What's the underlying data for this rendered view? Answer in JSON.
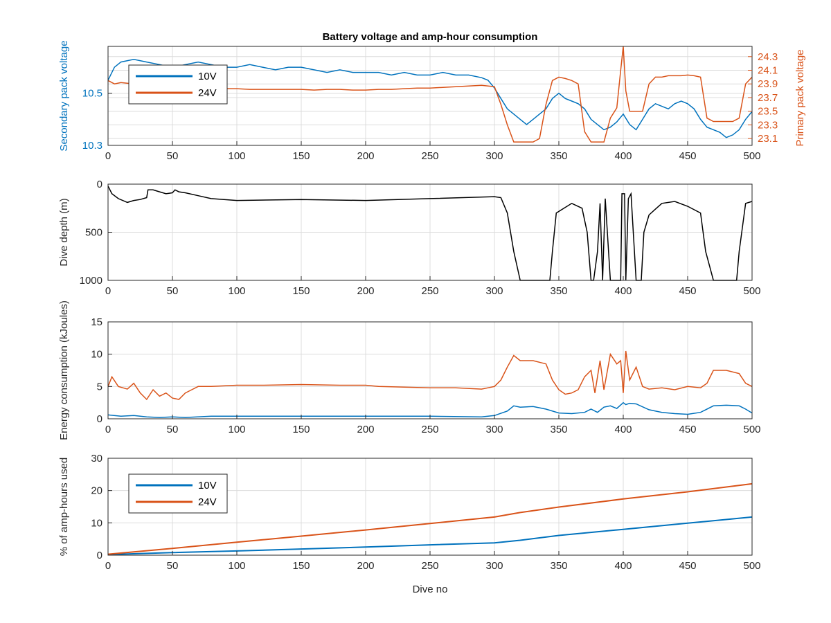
{
  "chart_data": [
    {
      "type": "line",
      "title": "Battery voltage and amp-hour consumption",
      "xlabel": "",
      "ylabel_left": "Secondary pack voltage",
      "ylabel_right": "Primary pack voltage",
      "xlim": [
        0,
        500
      ],
      "ylim_left": [
        10.3,
        10.68
      ],
      "ylim_right": [
        23.0,
        24.45
      ],
      "xticks": [
        "0",
        "50",
        "100",
        "150",
        "200",
        "250",
        "300",
        "350",
        "400",
        "450",
        "500"
      ],
      "yticks_left": [
        "10.3",
        "10.5"
      ],
      "yticks_left_values": [
        10.3,
        10.5
      ],
      "yticks_right": [
        "23.1",
        "23.3",
        "23.5",
        "23.7",
        "23.9",
        "24.1",
        "24.3"
      ],
      "yticks_right_values": [
        23.1,
        23.3,
        23.5,
        23.7,
        23.9,
        24.1,
        24.3
      ],
      "grid": true,
      "legend": {
        "position": "upper-left",
        "entries": [
          "10V",
          "24V"
        ]
      },
      "series": [
        {
          "name": "10V",
          "axis": "left",
          "color": "#0072BD",
          "x": [
            0,
            5,
            10,
            20,
            30,
            40,
            50,
            60,
            70,
            80,
            90,
            100,
            110,
            120,
            130,
            140,
            150,
            160,
            170,
            180,
            190,
            200,
            210,
            220,
            230,
            240,
            250,
            260,
            270,
            280,
            290,
            295,
            300,
            305,
            310,
            315,
            320,
            325,
            330,
            335,
            340,
            345,
            350,
            355,
            360,
            365,
            370,
            375,
            380,
            385,
            390,
            395,
            400,
            405,
            410,
            415,
            420,
            425,
            430,
            435,
            440,
            445,
            450,
            455,
            460,
            465,
            470,
            475,
            480,
            485,
            490,
            495,
            500
          ],
          "y": [
            10.55,
            10.6,
            10.62,
            10.63,
            10.62,
            10.61,
            10.6,
            10.61,
            10.62,
            10.61,
            10.6,
            10.6,
            10.61,
            10.6,
            10.59,
            10.6,
            10.6,
            10.59,
            10.58,
            10.59,
            10.58,
            10.58,
            10.58,
            10.57,
            10.58,
            10.57,
            10.57,
            10.58,
            10.57,
            10.57,
            10.56,
            10.55,
            10.52,
            10.48,
            10.44,
            10.42,
            10.4,
            10.38,
            10.4,
            10.42,
            10.44,
            10.48,
            10.5,
            10.48,
            10.47,
            10.46,
            10.44,
            10.4,
            10.38,
            10.36,
            10.37,
            10.39,
            10.42,
            10.38,
            10.36,
            10.4,
            10.44,
            10.46,
            10.45,
            10.44,
            10.46,
            10.47,
            10.46,
            10.44,
            10.4,
            10.37,
            10.36,
            10.35,
            10.33,
            10.34,
            10.36,
            10.4,
            10.43
          ]
        },
        {
          "name": "24V",
          "axis": "right",
          "color": "#D95319",
          "x": [
            0,
            5,
            10,
            20,
            30,
            40,
            50,
            60,
            70,
            80,
            90,
            100,
            110,
            120,
            130,
            140,
            150,
            160,
            170,
            180,
            190,
            200,
            210,
            220,
            230,
            240,
            250,
            260,
            270,
            280,
            290,
            300,
            305,
            310,
            315,
            320,
            325,
            330,
            335,
            340,
            345,
            350,
            355,
            360,
            365,
            370,
            375,
            380,
            385,
            390,
            395,
            398,
            400,
            402,
            405,
            410,
            415,
            420,
            425,
            430,
            435,
            440,
            445,
            450,
            455,
            460,
            465,
            470,
            475,
            480,
            485,
            490,
            495,
            500
          ],
          "y": [
            23.95,
            23.9,
            23.92,
            23.9,
            23.88,
            23.86,
            23.85,
            23.85,
            23.84,
            23.84,
            23.83,
            23.83,
            23.82,
            23.82,
            23.82,
            23.82,
            23.82,
            23.81,
            23.82,
            23.82,
            23.81,
            23.81,
            23.82,
            23.82,
            23.83,
            23.84,
            23.84,
            23.85,
            23.86,
            23.87,
            23.88,
            23.86,
            23.6,
            23.3,
            23.05,
            23.05,
            23.05,
            23.05,
            23.1,
            23.6,
            23.95,
            24.0,
            23.98,
            23.95,
            23.9,
            23.2,
            23.05,
            23.05,
            23.05,
            23.4,
            23.55,
            24.1,
            24.45,
            23.8,
            23.5,
            23.5,
            23.5,
            23.9,
            24.0,
            24.0,
            24.02,
            24.02,
            24.02,
            24.03,
            24.02,
            24.0,
            23.4,
            23.35,
            23.35,
            23.35,
            23.35,
            23.4,
            23.9,
            24.0
          ]
        }
      ]
    },
    {
      "type": "line",
      "title": "",
      "xlabel": "",
      "ylabel": "Dive depth (m)",
      "xlim": [
        0,
        500
      ],
      "ylim": [
        1000,
        0
      ],
      "reversed_y": true,
      "xticks": [
        "0",
        "50",
        "100",
        "150",
        "200",
        "250",
        "300",
        "350",
        "400",
        "450",
        "500"
      ],
      "yticks": [
        "0",
        "500",
        "1000"
      ],
      "yticks_values": [
        0,
        500,
        1000
      ],
      "grid": true,
      "series": [
        {
          "name": "",
          "color": "#000000",
          "x": [
            0,
            3,
            8,
            15,
            20,
            25,
            30,
            31,
            35,
            40,
            45,
            50,
            52,
            55,
            60,
            70,
            80,
            100,
            150,
            200,
            250,
            300,
            305,
            310,
            315,
            320,
            340,
            343,
            345,
            348,
            360,
            368,
            372,
            375,
            377,
            380,
            382,
            384,
            386,
            390,
            398,
            399,
            401,
            402,
            404,
            406,
            410,
            414,
            416,
            420,
            425,
            430,
            440,
            450,
            460,
            464,
            470,
            480,
            488,
            490,
            495,
            500
          ],
          "y": [
            20,
            100,
            150,
            190,
            170,
            160,
            140,
            60,
            60,
            80,
            100,
            90,
            60,
            80,
            90,
            120,
            150,
            170,
            160,
            170,
            150,
            130,
            140,
            300,
            700,
            1000,
            1000,
            1000,
            700,
            300,
            200,
            250,
            500,
            1000,
            1000,
            700,
            200,
            1000,
            150,
            1000,
            1000,
            100,
            100,
            1000,
            150,
            100,
            1000,
            1000,
            500,
            320,
            260,
            200,
            180,
            230,
            300,
            700,
            1000,
            1000,
            1000,
            700,
            200,
            180
          ]
        }
      ]
    },
    {
      "type": "line",
      "title": "",
      "xlabel": "",
      "ylabel": "Energy consumption (kJoules)",
      "xlim": [
        0,
        500
      ],
      "ylim": [
        0,
        15
      ],
      "xticks": [
        "0",
        "50",
        "100",
        "150",
        "200",
        "250",
        "300",
        "350",
        "400",
        "450",
        "500"
      ],
      "yticks": [
        "0",
        "5",
        "10",
        "15"
      ],
      "yticks_values": [
        0,
        5,
        10,
        15
      ],
      "grid": true,
      "series": [
        {
          "name": "10V",
          "color": "#0072BD",
          "x": [
            0,
            10,
            20,
            30,
            40,
            50,
            60,
            80,
            100,
            150,
            200,
            250,
            290,
            300,
            310,
            315,
            320,
            330,
            340,
            350,
            360,
            370,
            375,
            380,
            385,
            390,
            395,
            400,
            402,
            405,
            410,
            420,
            430,
            440,
            450,
            460,
            470,
            480,
            490,
            495,
            500
          ],
          "y": [
            0.6,
            0.4,
            0.5,
            0.3,
            0.2,
            0.3,
            0.2,
            0.4,
            0.4,
            0.4,
            0.4,
            0.4,
            0.3,
            0.5,
            1.2,
            2.0,
            1.8,
            1.9,
            1.5,
            0.9,
            0.8,
            1.0,
            1.5,
            1.0,
            1.8,
            2.0,
            1.6,
            2.5,
            2.2,
            2.4,
            2.3,
            1.4,
            1.0,
            0.8,
            0.7,
            1.0,
            2.0,
            2.1,
            2.0,
            1.5,
            0.9
          ]
        },
        {
          "name": "24V",
          "color": "#D95319",
          "x": [
            0,
            3,
            8,
            15,
            20,
            25,
            30,
            35,
            40,
            45,
            50,
            55,
            60,
            65,
            70,
            80,
            100,
            120,
            150,
            180,
            200,
            210,
            230,
            250,
            270,
            290,
            300,
            305,
            310,
            315,
            320,
            330,
            340,
            345,
            350,
            355,
            360,
            365,
            370,
            375,
            378,
            382,
            385,
            390,
            395,
            398,
            400,
            402,
            405,
            410,
            415,
            420,
            430,
            440,
            450,
            460,
            465,
            470,
            480,
            490,
            495,
            500
          ],
          "y": [
            5.0,
            6.5,
            5.0,
            4.6,
            5.5,
            4.0,
            3.0,
            4.5,
            3.5,
            4.0,
            3.2,
            3.0,
            4.0,
            4.5,
            5.0,
            5.0,
            5.2,
            5.2,
            5.3,
            5.2,
            5.2,
            5.0,
            4.9,
            4.8,
            4.8,
            4.6,
            5.0,
            6.0,
            8.0,
            9.8,
            9.0,
            9.0,
            8.5,
            6.0,
            4.5,
            3.8,
            4.0,
            4.5,
            6.5,
            7.5,
            4.0,
            9.0,
            4.5,
            10.0,
            8.5,
            9.0,
            4.0,
            10.5,
            6.0,
            8.0,
            5.0,
            4.6,
            4.8,
            4.5,
            5.0,
            4.8,
            5.5,
            7.5,
            7.5,
            7.0,
            5.5,
            5.0
          ]
        }
      ]
    },
    {
      "type": "line",
      "title": "",
      "xlabel": "Dive no",
      "ylabel": "% of amp-hours used",
      "xlim": [
        0,
        500
      ],
      "ylim": [
        0,
        30
      ],
      "xticks": [
        "0",
        "50",
        "100",
        "150",
        "200",
        "250",
        "300",
        "350",
        "400",
        "450",
        "500"
      ],
      "yticks": [
        "0",
        "10",
        "20",
        "30"
      ],
      "yticks_values": [
        0,
        10,
        20,
        30
      ],
      "grid": true,
      "legend": {
        "position": "upper-left",
        "entries": [
          "10V",
          "24V"
        ]
      },
      "series": [
        {
          "name": "10V",
          "color": "#0072BD",
          "x": [
            0,
            50,
            100,
            150,
            200,
            250,
            300,
            320,
            350,
            400,
            450,
            500
          ],
          "y": [
            0.2,
            0.8,
            1.3,
            1.9,
            2.5,
            3.2,
            3.8,
            4.6,
            6.1,
            8.0,
            9.9,
            11.8
          ]
        },
        {
          "name": "24V",
          "color": "#D95319",
          "x": [
            0,
            50,
            100,
            150,
            200,
            250,
            300,
            320,
            350,
            400,
            450,
            500
          ],
          "y": [
            0.3,
            2.1,
            4.0,
            5.9,
            7.8,
            9.8,
            11.8,
            13.2,
            14.9,
            17.4,
            19.6,
            22.1
          ]
        }
      ]
    }
  ]
}
